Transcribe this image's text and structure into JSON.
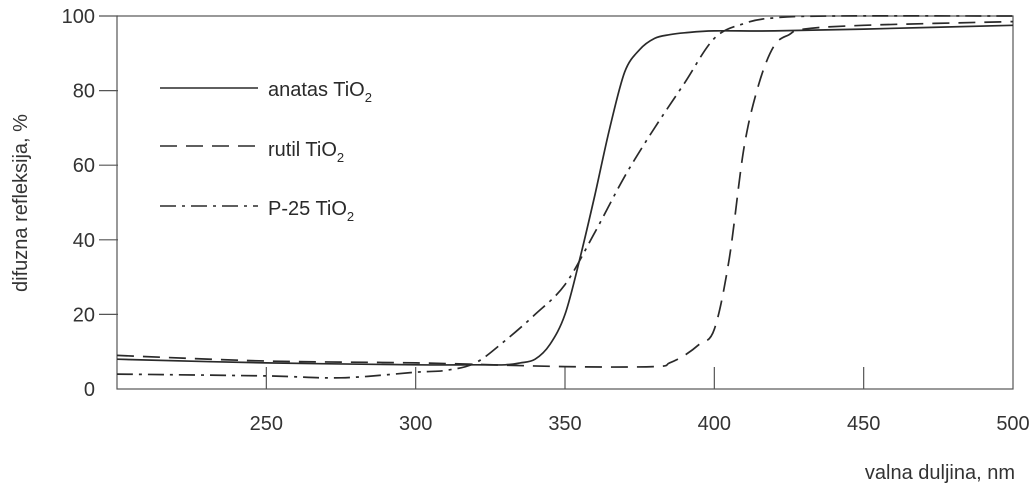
{
  "chart_data": {
    "type": "line",
    "xlabel": "valna duljina, nm",
    "ylabel": "difuzna refleksija, %",
    "xlim": [
      200,
      500
    ],
    "ylim": [
      0,
      100
    ],
    "x_ticks": [
      "250",
      "300",
      "350",
      "400",
      "450",
      "500"
    ],
    "y_ticks": [
      "0",
      "20",
      "40",
      "60",
      "80",
      "100"
    ],
    "grid": false,
    "legend_position": "upper-left",
    "series": [
      {
        "name": "anatas TiO",
        "subscript": "2",
        "line_style": "solid",
        "x": [
          200,
          250,
          300,
          320,
          330,
          335,
          340,
          345,
          350,
          355,
          360,
          365,
          370,
          375,
          380,
          385,
          390,
          400,
          420,
          450,
          500
        ],
        "y": [
          8,
          7,
          6.5,
          6.5,
          6.5,
          7,
          8,
          12,
          20,
          35,
          52,
          70,
          85,
          91,
          94,
          95,
          95.5,
          96,
          96,
          96.5,
          97.5
        ]
      },
      {
        "name": "rutil TiO",
        "subscript": "2",
        "line_style": "dashed",
        "x": [
          200,
          250,
          300,
          350,
          380,
          385,
          390,
          395,
          400,
          405,
          410,
          415,
          420,
          425,
          430,
          450,
          500
        ],
        "y": [
          9,
          7.5,
          7,
          6,
          6,
          7,
          9,
          12,
          16,
          35,
          65,
          82,
          92,
          95,
          96.5,
          97.5,
          98.5
        ]
      },
      {
        "name": "P-25 TiO",
        "subscript": "2",
        "line_style": "dash-dot",
        "x": [
          200,
          250,
          275,
          300,
          310,
          320,
          330,
          340,
          350,
          360,
          370,
          380,
          390,
          400,
          410,
          420,
          440,
          500
        ],
        "y": [
          4,
          3.5,
          3,
          4.5,
          5,
          7,
          13,
          20,
          28,
          42,
          57,
          70,
          82,
          94,
          98,
          99.5,
          100,
          100
        ]
      }
    ]
  }
}
